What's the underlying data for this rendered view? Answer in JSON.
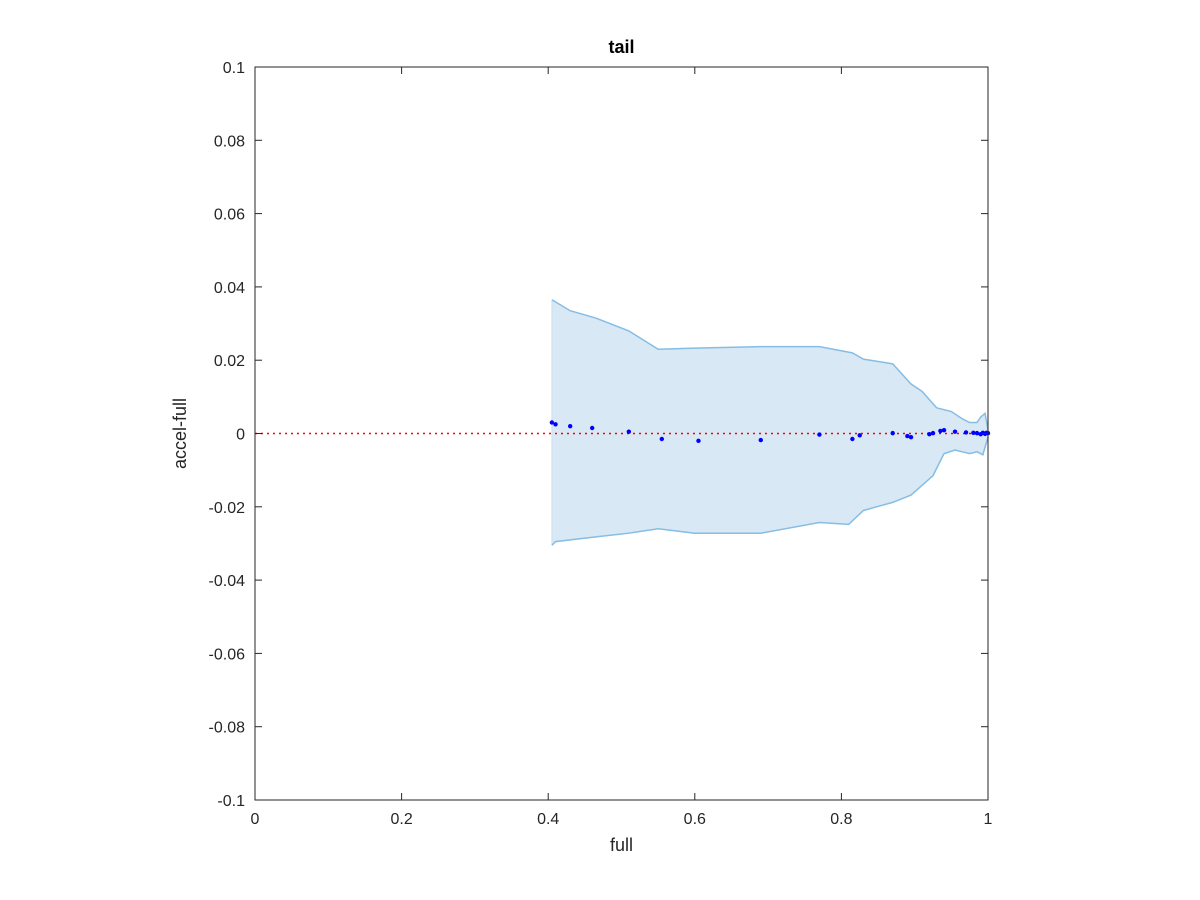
{
  "chart_data": {
    "type": "scatter",
    "title": "tail",
    "xlabel": "full",
    "ylabel": "accel-full",
    "xlim": [
      0,
      1
    ],
    "ylim": [
      -0.1,
      0.1
    ],
    "x_ticks": [
      0,
      0.2,
      0.4,
      0.6,
      0.8,
      1
    ],
    "x_tick_labels": [
      "0",
      "0.2",
      "0.4",
      "0.6",
      "0.8",
      "1"
    ],
    "y_ticks": [
      0.1,
      0.08,
      0.06,
      0.04,
      0.02,
      0,
      -0.02,
      -0.04,
      -0.06,
      -0.08,
      -0.1
    ],
    "y_tick_labels": [
      "0.1",
      "0.08",
      "0.06",
      "0.04",
      "0.02",
      "0",
      "-0.02",
      "-0.04",
      "-0.06",
      "-0.08",
      "-0.1"
    ],
    "grid": false,
    "reference_line": {
      "y": 0,
      "style": "dotted",
      "color": "#ff0000"
    },
    "band": {
      "color": "#d8e8f4",
      "edge_color": "#86bde4",
      "upper": [
        [
          0.405,
          0.0365
        ],
        [
          0.43,
          0.0335
        ],
        [
          0.465,
          0.0315
        ],
        [
          0.51,
          0.028
        ],
        [
          0.55,
          0.023
        ],
        [
          0.6,
          0.0233
        ],
        [
          0.69,
          0.0237
        ],
        [
          0.77,
          0.0237
        ],
        [
          0.815,
          0.022
        ],
        [
          0.83,
          0.0203
        ],
        [
          0.87,
          0.019
        ],
        [
          0.895,
          0.0135
        ],
        [
          0.91,
          0.0115
        ],
        [
          0.93,
          0.007
        ],
        [
          0.95,
          0.006
        ],
        [
          0.965,
          0.004
        ],
        [
          0.975,
          0.003
        ],
        [
          0.985,
          0.003
        ],
        [
          0.99,
          0.0045
        ],
        [
          0.996,
          0.0055
        ],
        [
          1.0,
          0.001
        ]
      ],
      "lower": [
        [
          0.405,
          -0.0305
        ],
        [
          0.41,
          -0.0295
        ],
        [
          0.465,
          -0.0282
        ],
        [
          0.51,
          -0.0272
        ],
        [
          0.55,
          -0.026
        ],
        [
          0.6,
          -0.0272
        ],
        [
          0.69,
          -0.0272
        ],
        [
          0.77,
          -0.0243
        ],
        [
          0.81,
          -0.0248
        ],
        [
          0.83,
          -0.021
        ],
        [
          0.87,
          -0.0188
        ],
        [
          0.895,
          -0.0168
        ],
        [
          0.925,
          -0.0115
        ],
        [
          0.94,
          -0.0055
        ],
        [
          0.955,
          -0.0045
        ],
        [
          0.975,
          -0.0055
        ],
        [
          0.985,
          -0.005
        ],
        [
          0.993,
          -0.0058
        ],
        [
          1.0,
          -0.001
        ]
      ]
    },
    "series": [
      {
        "color": "#0000ff",
        "points": [
          [
            0.405,
            0.003
          ],
          [
            0.41,
            0.0025
          ],
          [
            0.43,
            0.002
          ],
          [
            0.46,
            0.0015
          ],
          [
            0.51,
            0.0005
          ],
          [
            0.555,
            -0.0015
          ],
          [
            0.605,
            -0.002
          ],
          [
            0.69,
            -0.0018
          ],
          [
            0.77,
            -0.0003
          ],
          [
            0.815,
            -0.0015
          ],
          [
            0.825,
            -0.0005
          ],
          [
            0.87,
            0.0001
          ],
          [
            0.89,
            -0.0007
          ],
          [
            0.895,
            -0.001
          ],
          [
            0.92,
            -0.0002
          ],
          [
            0.925,
            0.0001
          ],
          [
            0.935,
            0.0007
          ],
          [
            0.94,
            0.0009
          ],
          [
            0.955,
            0.0005
          ],
          [
            0.97,
            0.0003
          ],
          [
            0.98,
            0.0002
          ],
          [
            0.985,
            0.0001
          ],
          [
            0.99,
            -0.0002
          ],
          [
            0.993,
            0.0002
          ],
          [
            0.996,
            -0.0001
          ],
          [
            0.998,
            0.0002
          ],
          [
            1.0,
            0.0001
          ]
        ]
      }
    ]
  },
  "colors": {
    "axis": "#262626",
    "background": "#ffffff"
  }
}
